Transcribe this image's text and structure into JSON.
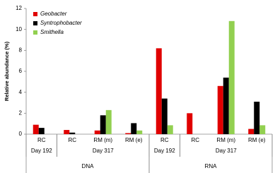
{
  "chart_data": {
    "type": "bar",
    "y_label": "Relative abundance (%)",
    "categories": [
      "RC",
      "RC",
      "RM (m)",
      "RM (e)",
      "RC",
      "RC",
      "RM (m)",
      "RM (e)"
    ],
    "x_levels": [
      [
        "Day 192",
        "Day 317",
        "Day 317",
        "Day 317",
        "Day 192",
        "Day 317",
        "Day 317",
        "Day 317"
      ],
      [
        "DNA",
        "DNA",
        "DNA",
        "DNA",
        "RNA",
        "RNA",
        "RNA",
        "RNA"
      ]
    ],
    "series": [
      {
        "name": "Geobacter",
        "color": "#e00000",
        "values": [
          0.9,
          0.4,
          0.35,
          0.1,
          8.2,
          2.0,
          4.6,
          0.5
        ]
      },
      {
        "name": "Syntrophobacter",
        "color": "#000000",
        "values": [
          0.6,
          0.15,
          1.8,
          1.05,
          3.4,
          0,
          5.4,
          3.1
        ]
      },
      {
        "name": "Smithella",
        "color": "#92d050",
        "values": [
          0,
          0,
          2.3,
          0.35,
          0.85,
          0,
          10.8,
          0.85
        ]
      }
    ],
    "ylim": [
      0,
      12
    ],
    "yticks": [
      0,
      2,
      4,
      6,
      8,
      10,
      12
    ],
    "grid": false,
    "legend": "top-left"
  }
}
